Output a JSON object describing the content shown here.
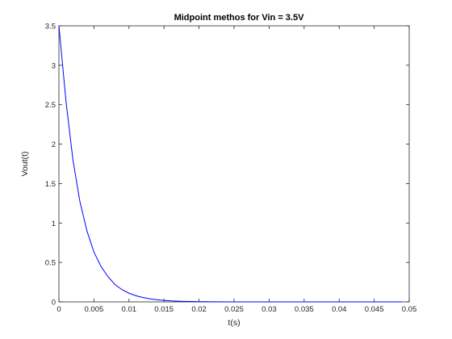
{
  "chart_data": {
    "type": "line",
    "title": "Midpoint methos for Vin = 3.5V",
    "xlabel": "t(s)",
    "ylabel": "Vout(t)",
    "xlim": [
      0,
      0.05
    ],
    "ylim": [
      0,
      3.5
    ],
    "xticks": [
      "0",
      "0.005",
      "0.01",
      "0.015",
      "0.02",
      "0.025",
      "0.03",
      "0.035",
      "0.04",
      "0.045",
      "0.05"
    ],
    "yticks": [
      "0",
      "0.5",
      "1",
      "1.5",
      "2",
      "2.5",
      "3",
      "3.5"
    ],
    "grid": false,
    "line_color": "#0000ff",
    "series": [
      {
        "x": [
          0,
          0.001,
          0.002,
          0.003,
          0.004,
          0.005,
          0.006,
          0.007,
          0.008,
          0.009,
          0.01,
          0.011,
          0.012,
          0.013,
          0.014,
          0.015,
          0.016,
          0.017,
          0.018,
          0.019,
          0.02,
          0.022,
          0.025,
          0.03,
          0.035,
          0.04,
          0.045,
          0.049
        ],
        "values": [
          3.5,
          2.55,
          1.8,
          1.27,
          0.9,
          0.63,
          0.45,
          0.32,
          0.22,
          0.155,
          0.11,
          0.078,
          0.055,
          0.038,
          0.027,
          0.019,
          0.013,
          0.009,
          0.0065,
          0.0045,
          0.003,
          0.0015,
          0.0006,
          0.0001,
          0.0,
          0.0,
          0.0,
          0.0
        ]
      }
    ]
  }
}
